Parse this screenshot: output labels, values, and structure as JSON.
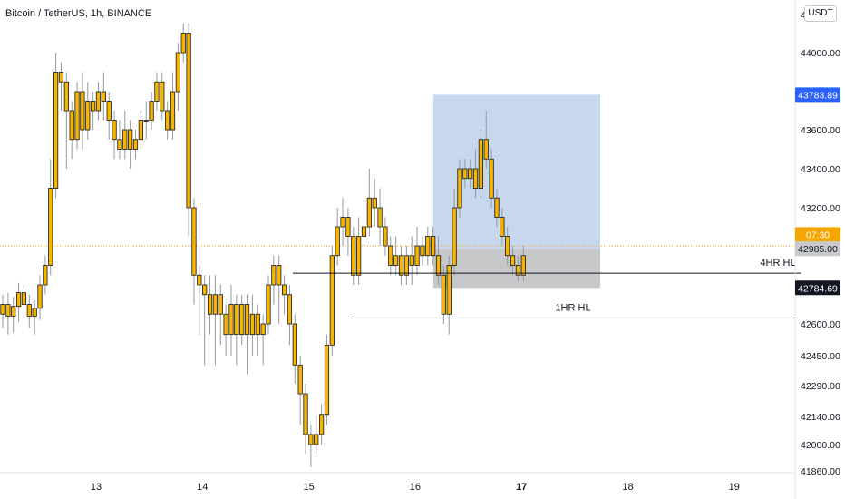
{
  "header": {
    "symbol_title": "Bitcoin / TetherUS, 1h, BINANCE",
    "currency": "USDT"
  },
  "chart_data": {
    "type": "candlestick",
    "title": "Bitcoin / TetherUS, 1h, BINANCE",
    "y_axis": {
      "ticks": [
        {
          "value": 44000,
          "label": "44000.00"
        },
        {
          "value": 43800,
          "label": "43800.00"
        },
        {
          "value": 43600,
          "label": "43600.00"
        },
        {
          "value": 43400,
          "label": "43400.00"
        },
        {
          "value": 43200,
          "label": "43200.00"
        },
        {
          "value": 43000,
          "label": "43000.00"
        },
        {
          "value": 42800,
          "label": "42800.00"
        },
        {
          "value": 42600,
          "label": "42600.00"
        },
        {
          "value": 42450,
          "label": "42450.00"
        },
        {
          "value": 42290,
          "label": "42290.00"
        },
        {
          "value": 42140,
          "label": "42140.00"
        },
        {
          "value": 42000,
          "label": "42000.00"
        },
        {
          "value": 41860,
          "label": "41860.00"
        }
      ],
      "top_partial_label": "4",
      "ylim": [
        41860,
        44110
      ]
    },
    "x_axis": {
      "ticks": [
        {
          "day": 13,
          "label": "13",
          "bold": false
        },
        {
          "day": 14,
          "label": "14",
          "bold": false
        },
        {
          "day": 15,
          "label": "15",
          "bold": false
        },
        {
          "day": 16,
          "label": "16",
          "bold": false
        },
        {
          "day": 17,
          "label": "17",
          "bold": true
        },
        {
          "day": 18,
          "label": "18",
          "bold": false
        },
        {
          "day": 19,
          "label": "19",
          "bold": false
        }
      ],
      "xlim_days": [
        12.19,
        19.63
      ]
    },
    "ohlc_pairs": [
      [
        42650,
        42700,
        42580,
        42750
      ],
      [
        42700,
        42640,
        42550,
        42760
      ],
      [
        42640,
        42690,
        42560,
        42740
      ],
      [
        42690,
        42760,
        42610,
        42810
      ],
      [
        42760,
        42700,
        42630,
        42800
      ],
      [
        42700,
        42640,
        42580,
        42750
      ],
      [
        42640,
        42680,
        42550,
        42720
      ],
      [
        42680,
        42800,
        42620,
        42850
      ],
      [
        42800,
        42900,
        42750,
        42950
      ],
      [
        42900,
        43300,
        42850,
        43450
      ],
      [
        43300,
        43900,
        43250,
        44000
      ],
      [
        43900,
        43850,
        43700,
        43950
      ],
      [
        43850,
        43700,
        43400,
        43900
      ],
      [
        43700,
        43550,
        43450,
        43750
      ],
      [
        43550,
        43800,
        43500,
        43850
      ],
      [
        43800,
        43600,
        43500,
        43900
      ],
      [
        43600,
        43750,
        43550,
        43850
      ],
      [
        43750,
        43700,
        43600,
        43800
      ],
      [
        43700,
        43800,
        43650,
        43850
      ],
      [
        43800,
        43750,
        43650,
        43900
      ],
      [
        43750,
        43650,
        43550,
        43800
      ],
      [
        43650,
        43550,
        43450,
        43700
      ],
      [
        43550,
        43500,
        43450,
        43650
      ],
      [
        43500,
        43600,
        43450,
        43700
      ],
      [
        43600,
        43500,
        43400,
        43650
      ],
      [
        43500,
        43550,
        43450,
        43600
      ],
      [
        43550,
        43650,
        43500,
        43700
      ],
      [
        43650,
        43650,
        43550,
        43750
      ],
      [
        43650,
        43750,
        43600,
        43800
      ],
      [
        43750,
        43850,
        43700,
        43900
      ],
      [
        43850,
        43700,
        43650,
        43900
      ],
      [
        43700,
        43600,
        43550,
        43750
      ],
      [
        43600,
        43800,
        43550,
        43900
      ],
      [
        43800,
        44000,
        43700,
        44050
      ],
      [
        44000,
        44100,
        43950,
        44150
      ],
      [
        44100,
        43200,
        43050,
        44150
      ],
      [
        43200,
        42850,
        42700,
        43250
      ],
      [
        42850,
        42800,
        42550,
        42900
      ],
      [
        42800,
        42750,
        42400,
        42850
      ],
      [
        42750,
        42650,
        42550,
        42850
      ],
      [
        42650,
        42750,
        42400,
        42850
      ],
      [
        42750,
        42650,
        42500,
        42800
      ],
      [
        42650,
        42550,
        42450,
        42700
      ],
      [
        42550,
        42700,
        42450,
        42800
      ],
      [
        42700,
        42550,
        42400,
        42750
      ],
      [
        42550,
        42700,
        42500,
        42750
      ],
      [
        42700,
        42550,
        42350,
        42750
      ],
      [
        42550,
        42650,
        42450,
        42750
      ],
      [
        42650,
        42550,
        42450,
        42700
      ],
      [
        42550,
        42600,
        42400,
        42650
      ],
      [
        42600,
        42800,
        42550,
        42850
      ],
      [
        42800,
        42900,
        42700,
        42950
      ],
      [
        42900,
        42800,
        42600,
        42950
      ],
      [
        42800,
        42750,
        42650,
        42850
      ],
      [
        42750,
        42600,
        42500,
        42800
      ],
      [
        42600,
        42400,
        42300,
        42650
      ],
      [
        42400,
        42250,
        42100,
        42450
      ],
      [
        42250,
        42050,
        41950,
        42300
      ],
      [
        42050,
        42000,
        41880,
        42100
      ],
      [
        42000,
        42050,
        41950,
        42150
      ],
      [
        42050,
        42150,
        42000,
        42200
      ],
      [
        42150,
        42500,
        42100,
        42550
      ],
      [
        42500,
        42950,
        42450,
        43000
      ],
      [
        42950,
        43100,
        42900,
        43200
      ],
      [
        43100,
        43150,
        43000,
        43250
      ],
      [
        43150,
        43050,
        42950,
        43200
      ],
      [
        43050,
        42850,
        42800,
        43100
      ],
      [
        42850,
        43050,
        42800,
        43150
      ],
      [
        43050,
        43100,
        43000,
        43250
      ],
      [
        43100,
        43250,
        43050,
        43400
      ],
      [
        43250,
        43200,
        43100,
        43350
      ],
      [
        43200,
        43100,
        43000,
        43300
      ],
      [
        43100,
        43000,
        42950,
        43150
      ],
      [
        43000,
        42900,
        42850,
        43050
      ],
      [
        42900,
        42950,
        42850,
        43050
      ],
      [
        42950,
        42850,
        42800,
        43000
      ],
      [
        42850,
        42950,
        42800,
        43000
      ],
      [
        42950,
        42900,
        42800,
        43050
      ],
      [
        42900,
        43000,
        42850,
        43100
      ],
      [
        43000,
        42950,
        42900,
        43050
      ],
      [
        42950,
        43050,
        42900,
        43100
      ],
      [
        43050,
        42950,
        42900,
        43100
      ],
      [
        42950,
        42850,
        42800,
        43050
      ],
      [
        42850,
        42650,
        42600,
        42900
      ],
      [
        42650,
        42900,
        42550,
        42950
      ],
      [
        42900,
        43200,
        42850,
        43300
      ],
      [
        43200,
        43400,
        43150,
        43450
      ],
      [
        43400,
        43350,
        43300,
        43450
      ],
      [
        43350,
        43400,
        43300,
        43450
      ],
      [
        43400,
        43300,
        43250,
        43500
      ],
      [
        43300,
        43550,
        43250,
        43600
      ],
      [
        43550,
        43450,
        43400,
        43700
      ],
      [
        43450,
        43250,
        43200,
        43500
      ],
      [
        43250,
        43150,
        43100,
        43300
      ],
      [
        43150,
        43050,
        43000,
        43200
      ],
      [
        43050,
        42950,
        42900,
        43100
      ],
      [
        42950,
        42900,
        42850,
        43000
      ],
      [
        42900,
        42850,
        42820,
        42950
      ],
      [
        42850,
        42950,
        42820,
        43000
      ]
    ],
    "current_price_line": 43000,
    "position_box": {
      "start_day": 16.17,
      "end_day": 17.74,
      "take_profit": 43783.89,
      "entry": 42985,
      "stop_loss": 42784.69
    },
    "annotations": [
      {
        "text": "4HR HL",
        "price": 42860,
        "from_day": 14.85,
        "to_day": 19.63
      },
      {
        "text": "1HR HL",
        "price": 42630,
        "from_day": 15.43,
        "to_day": 19.58
      }
    ],
    "price_badges": [
      {
        "label": "43783.89",
        "value": 43783.89,
        "color": "#2962ff",
        "text_color": "#ffffff"
      },
      {
        "label": "07:30",
        "value": 43060,
        "color": "#f7a600",
        "text_color": "#ffffff"
      },
      {
        "label": "42985.00",
        "value": 42985,
        "color": "#c8c9cc",
        "text_color": "#131722"
      },
      {
        "label": "42784.69",
        "value": 42784.69,
        "color": "#131722",
        "text_color": "#ffffff"
      }
    ],
    "grid": false,
    "colors": {
      "up_body": "#f7b500",
      "down_body": "#f7b500",
      "candle_border": "#131722",
      "wick": "#9598a1",
      "profit_zone": "#c7d7ee",
      "loss_zone": "#c6c7c9",
      "current_price_dotted": "#f7a600"
    }
  }
}
